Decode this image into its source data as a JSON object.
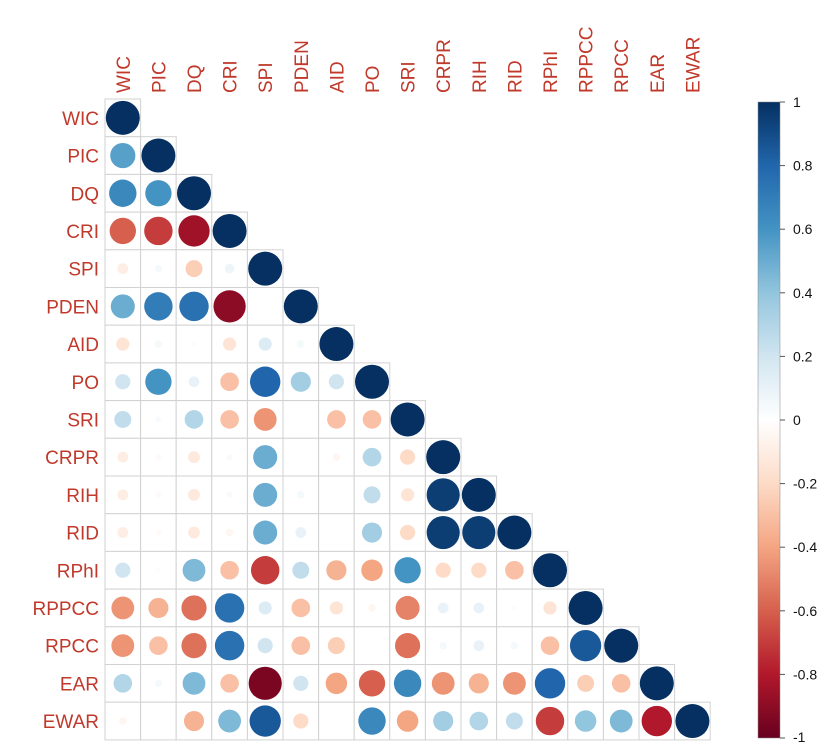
{
  "chart_data": {
    "type": "heatmap",
    "subtype": "correlation-matrix-lower",
    "variables": [
      "WIC",
      "PIC",
      "DQ",
      "CRI",
      "SPI",
      "PDEN",
      "AID",
      "PO",
      "SRI",
      "CRPR",
      "RIH",
      "RID",
      "RPhI",
      "RPPCC",
      "RPCC",
      "EAR",
      "EWAR"
    ],
    "matrix": [
      [
        1.0
      ],
      [
        0.55,
        1.0
      ],
      [
        0.65,
        0.6,
        1.0
      ],
      [
        -0.6,
        -0.7,
        -0.85,
        1.0
      ],
      [
        -0.1,
        0.05,
        -0.25,
        0.08,
        1.0
      ],
      [
        0.5,
        0.7,
        0.75,
        -0.9,
        0.0,
        1.0
      ],
      [
        -0.15,
        0.05,
        0.02,
        -0.15,
        0.15,
        0.05,
        1.0
      ],
      [
        0.2,
        0.6,
        0.1,
        -0.3,
        0.8,
        0.35,
        0.2,
        1.0
      ],
      [
        0.25,
        0.03,
        0.3,
        -0.3,
        -0.45,
        0.0,
        -0.3,
        -0.3,
        1.0
      ],
      [
        -0.1,
        -0.03,
        -0.12,
        0.03,
        0.5,
        0.0,
        -0.05,
        0.3,
        -0.2,
        1.0
      ],
      [
        -0.1,
        -0.03,
        -0.12,
        0.03,
        0.5,
        0.05,
        0.0,
        0.25,
        -0.15,
        0.95,
        1.0
      ],
      [
        -0.1,
        -0.03,
        -0.12,
        -0.05,
        0.5,
        0.1,
        0.0,
        0.35,
        -0.2,
        0.95,
        0.95,
        1.0
      ],
      [
        0.2,
        0.02,
        0.45,
        -0.3,
        -0.7,
        0.25,
        -0.35,
        -0.4,
        0.6,
        -0.2,
        -0.2,
        -0.3,
        1.0
      ],
      [
        -0.45,
        -0.35,
        -0.55,
        0.75,
        0.15,
        -0.3,
        -0.15,
        -0.05,
        -0.5,
        0.1,
        0.1,
        0.02,
        -0.15,
        1.0
      ],
      [
        -0.45,
        -0.3,
        -0.55,
        0.75,
        0.2,
        -0.3,
        -0.25,
        0.0,
        -0.55,
        0.05,
        0.1,
        0.05,
        -0.3,
        0.85,
        1.0
      ],
      [
        0.3,
        0.05,
        0.45,
        -0.3,
        -0.95,
        0.2,
        -0.4,
        -0.6,
        0.65,
        -0.45,
        -0.35,
        -0.45,
        0.8,
        -0.25,
        -0.3,
        1.0
      ],
      [
        -0.05,
        0.0,
        -0.35,
        0.45,
        0.85,
        -0.2,
        0.0,
        0.65,
        -0.4,
        0.35,
        0.3,
        0.25,
        -0.7,
        0.4,
        0.45,
        -0.8,
        1.0
      ]
    ],
    "colorbar": {
      "range": [
        -1,
        1
      ],
      "ticks": [
        1,
        0.8,
        0.6,
        0.4,
        0.2,
        0,
        -0.2,
        -0.4,
        -0.6,
        -0.8,
        -1
      ],
      "colors": {
        "neg_strong": "#67001f",
        "neg_mid": "#d6604d",
        "neg_light": "#fddbc7",
        "zero": "#ffffff",
        "pos_light": "#d1e5f0",
        "pos_mid": "#4393c3",
        "pos_strong": "#053061"
      }
    },
    "label_color": "#c0392b",
    "grid": true
  }
}
